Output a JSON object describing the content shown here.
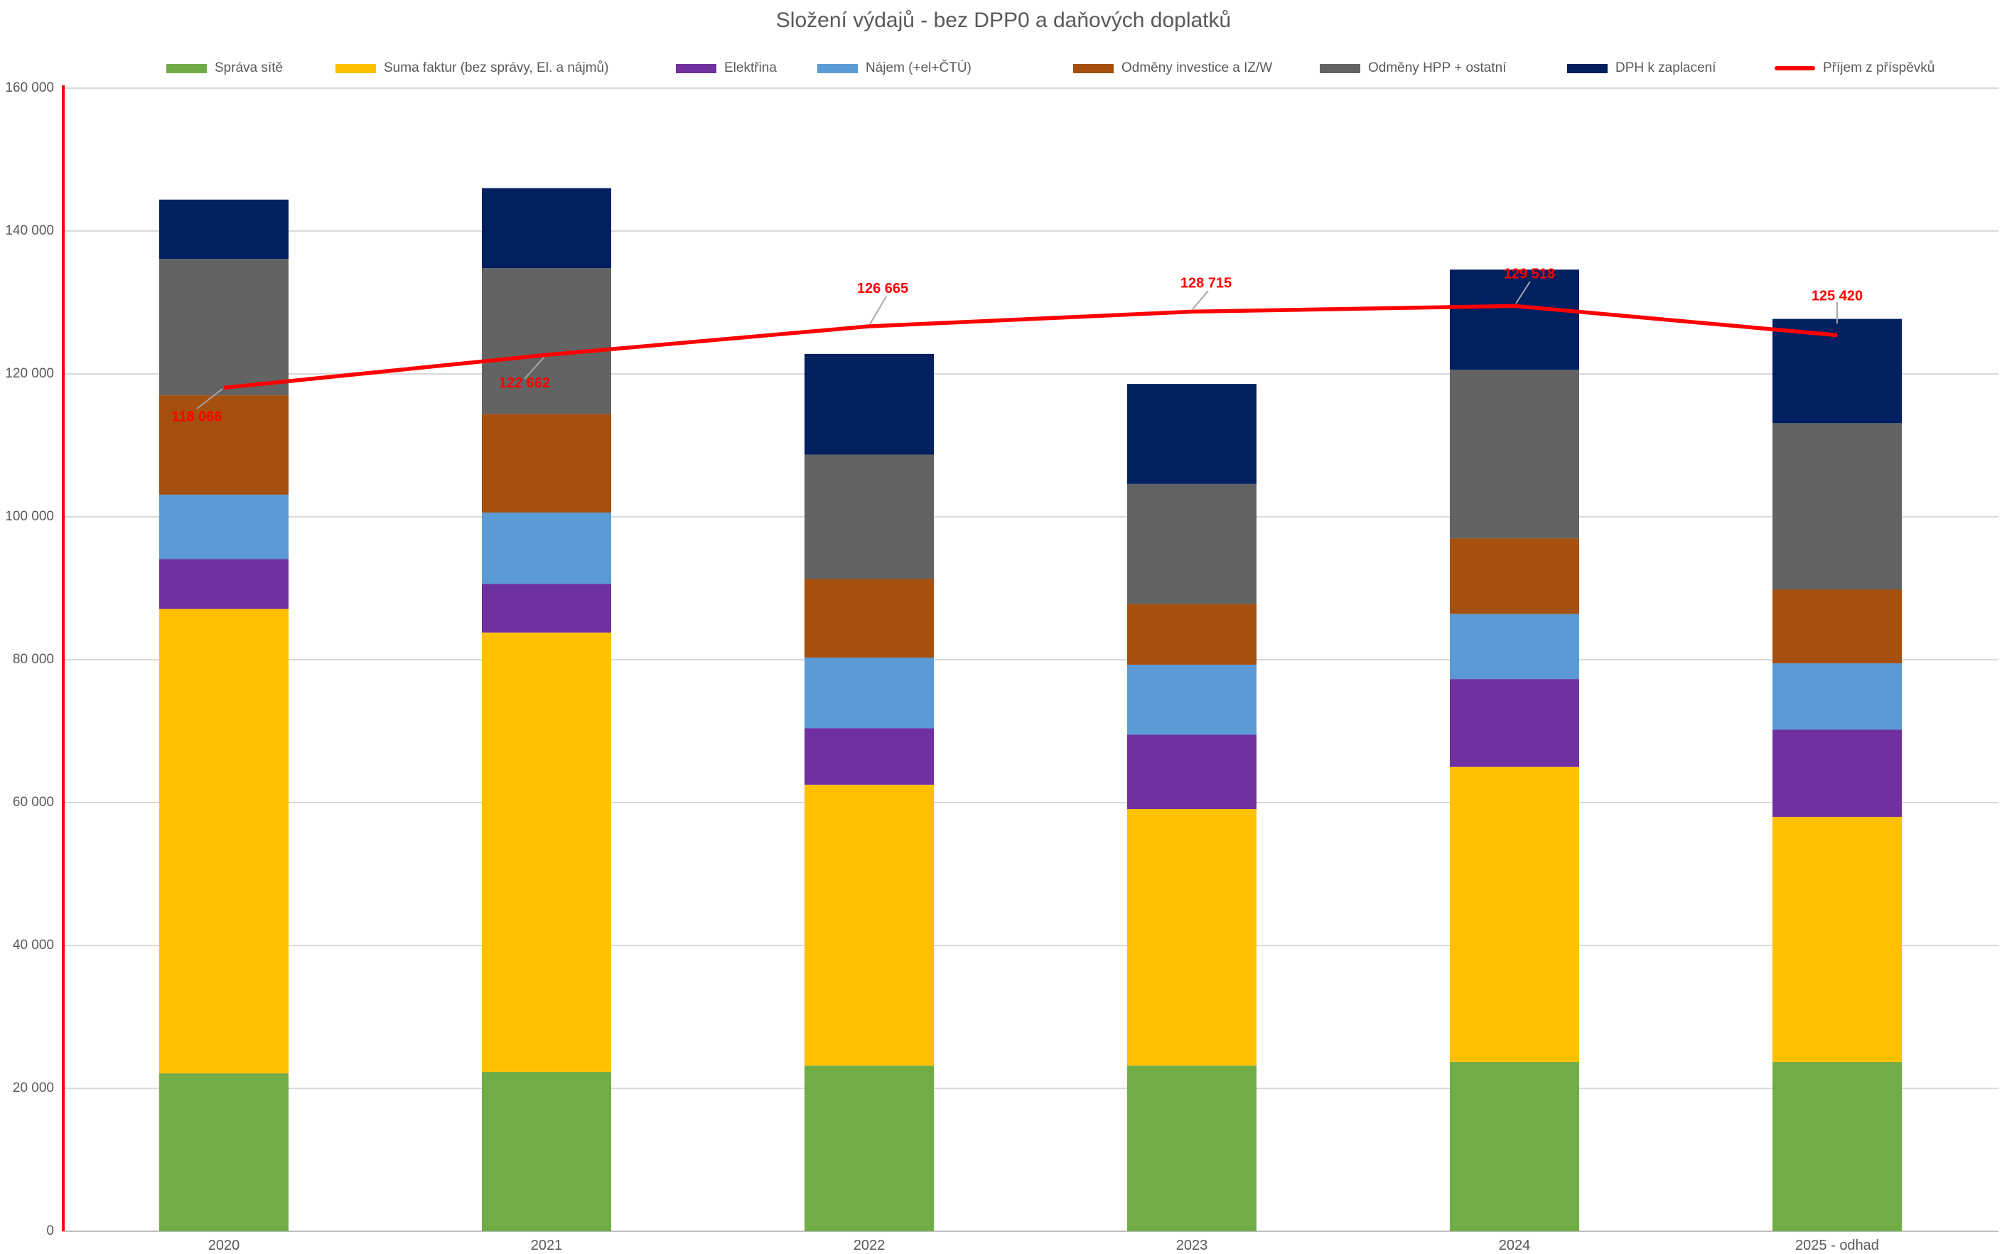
{
  "title": "Složení výdajů - bez DPP0 a daňových doplatků",
  "y_axis": {
    "tick_labels": [
      "0",
      "20 000",
      "40 000",
      "60 000",
      "80 000",
      "100 000",
      "120 000",
      "140 000",
      "160 000"
    ],
    "axis_line_color": "#FF0000",
    "gridline_color": "#D9D9D9",
    "x_axis_line_color": "#BFBFBF",
    "tick_text_color": "#595959"
  },
  "chart_data": {
    "type": "stacked-bar+line",
    "title": "Složení výdajů - bez DPP0 a daňových doplatků",
    "categories": [
      "2020",
      "2021",
      "2022",
      "2023",
      "2024",
      "2025 - odhad"
    ],
    "ylim": [
      0,
      160000
    ],
    "ytick_step": 20000,
    "grid": true,
    "legend_position": "top",
    "series": [
      {
        "name": "Správa sítě",
        "color": "#70AD47",
        "values": [
          22100,
          22300,
          23200,
          23200,
          23700,
          23700
        ]
      },
      {
        "name": "Suma faktur (bez správy, El. a nájmů)",
        "color": "#FFC000",
        "values": [
          65000,
          61500,
          39300,
          35900,
          41300,
          34300
        ]
      },
      {
        "name": "Elektřina",
        "color": "#7030A0",
        "values": [
          7000,
          6800,
          7900,
          10400,
          12300,
          12200
        ]
      },
      {
        "name": "Nájem (+el+ČTÚ)",
        "color": "#5B9BD5",
        "values": [
          9000,
          10000,
          9900,
          9800,
          9100,
          9300
        ]
      },
      {
        "name": "Odměny investice a IZ/W",
        "color": "#A5500F",
        "values": [
          13900,
          13800,
          11000,
          8500,
          10600,
          10300
        ]
      },
      {
        "name": "Odměny HPP + ostatní",
        "color": "#636363",
        "values": [
          19100,
          20400,
          17400,
          16800,
          23600,
          23300
        ]
      },
      {
        "name": "DPH k zaplacení",
        "color": "#002060",
        "values": [
          8300,
          11200,
          14100,
          14000,
          14000,
          14600
        ]
      }
    ],
    "line_series": {
      "name": "Příjem z příspěvků",
      "color": "#FF0000",
      "values": [
        118066,
        122662,
        126665,
        128715,
        129518,
        125420
      ],
      "labels": [
        "118 066",
        "122 662",
        "126 665",
        "128 715",
        "129 518",
        "125 420"
      ],
      "label_color": "#FF0000",
      "leader_color": "#A6A6A6"
    }
  }
}
